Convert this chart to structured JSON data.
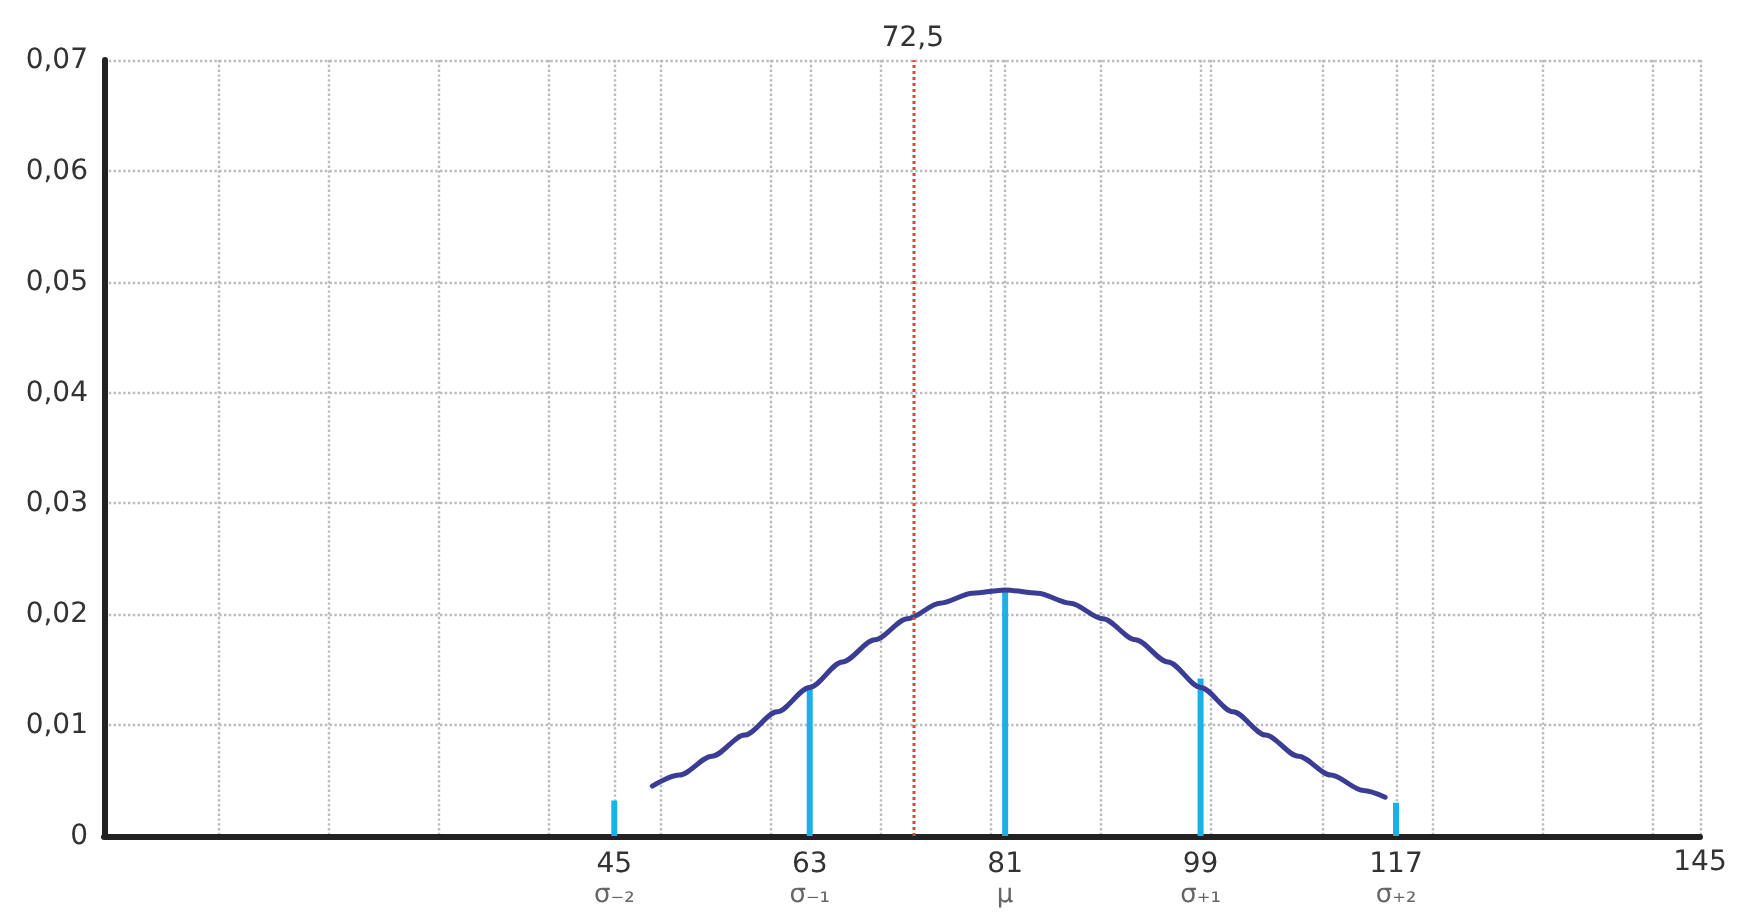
{
  "chart_data": {
    "type": "line",
    "xlim": [
      -2,
      145
    ],
    "ylim": [
      0,
      0.07
    ],
    "xticks": [
      {
        "value": 8.5,
        "label": null
      },
      {
        "value": 18.7,
        "label": null
      },
      {
        "value": 28.8,
        "label": null
      },
      {
        "value": 39,
        "label": null
      },
      {
        "value": 45,
        "label": "45\nσ₋₂"
      },
      {
        "value": 49.2,
        "label": null
      },
      {
        "value": 59.3,
        "label": null
      },
      {
        "value": 63,
        "label": "63\nσ₋₁"
      },
      {
        "value": 69.5,
        "label": null
      },
      {
        "value": 79.7,
        "label": null
      },
      {
        "value": 81,
        "label": "81\nμ"
      },
      {
        "value": 89.8,
        "label": null
      },
      {
        "value": 99,
        "label": "99\nσ₊₁"
      },
      {
        "value": 100,
        "label": null
      },
      {
        "value": 110.2,
        "label": null
      },
      {
        "value": 117,
        "label": "117\nσ₊₂"
      },
      {
        "value": 120.3,
        "label": null
      },
      {
        "value": 130.5,
        "label": null
      },
      {
        "value": 140.7,
        "label": null
      },
      145
    ],
    "yticks": [
      0,
      {
        "value": 0.01,
        "label": "0,01"
      },
      {
        "value": 0.02,
        "label": "0,02"
      },
      {
        "value": 0.03,
        "label": "0,03"
      },
      {
        "value": 0.04,
        "label": "0,04"
      },
      {
        "value": 0.05,
        "label": "0,05"
      },
      {
        "value": 0.06,
        "label": "0,06"
      },
      {
        "value": 0.07,
        "label": "0,07"
      }
    ],
    "grid": true,
    "marker": "none",
    "line_style": "solid",
    "ref_lines": [
      {
        "axis": "x",
        "value": 72.5,
        "label": "72,5",
        "color": "#e8413c",
        "line_style": "dotted"
      }
    ],
    "series": [
      {
        "color": "#3b3d94",
        "x": [
          48.5,
          51,
          54,
          57,
          60,
          63,
          66,
          69,
          72,
          75,
          78,
          81,
          84,
          87,
          90,
          93,
          96,
          99,
          102,
          105,
          108,
          111,
          114,
          116
        ],
        "values": [
          0.0045,
          0.0055,
          0.0072,
          0.0091,
          0.0112,
          0.0134,
          0.0157,
          0.0177,
          0.0196,
          0.021,
          0.0219,
          0.0222,
          0.0219,
          0.021,
          0.0196,
          0.0177,
          0.0157,
          0.0134,
          0.0112,
          0.0091,
          0.0072,
          0.0055,
          0.0041,
          0.0035
        ]
      },
      {
        "type": "bar",
        "color": "#1ab0e8",
        "x": [
          45,
          63,
          81,
          99,
          117
        ],
        "values": [
          0.0032,
          0.0134,
          0.0222,
          0.0142,
          0.003
        ]
      }
    ]
  }
}
